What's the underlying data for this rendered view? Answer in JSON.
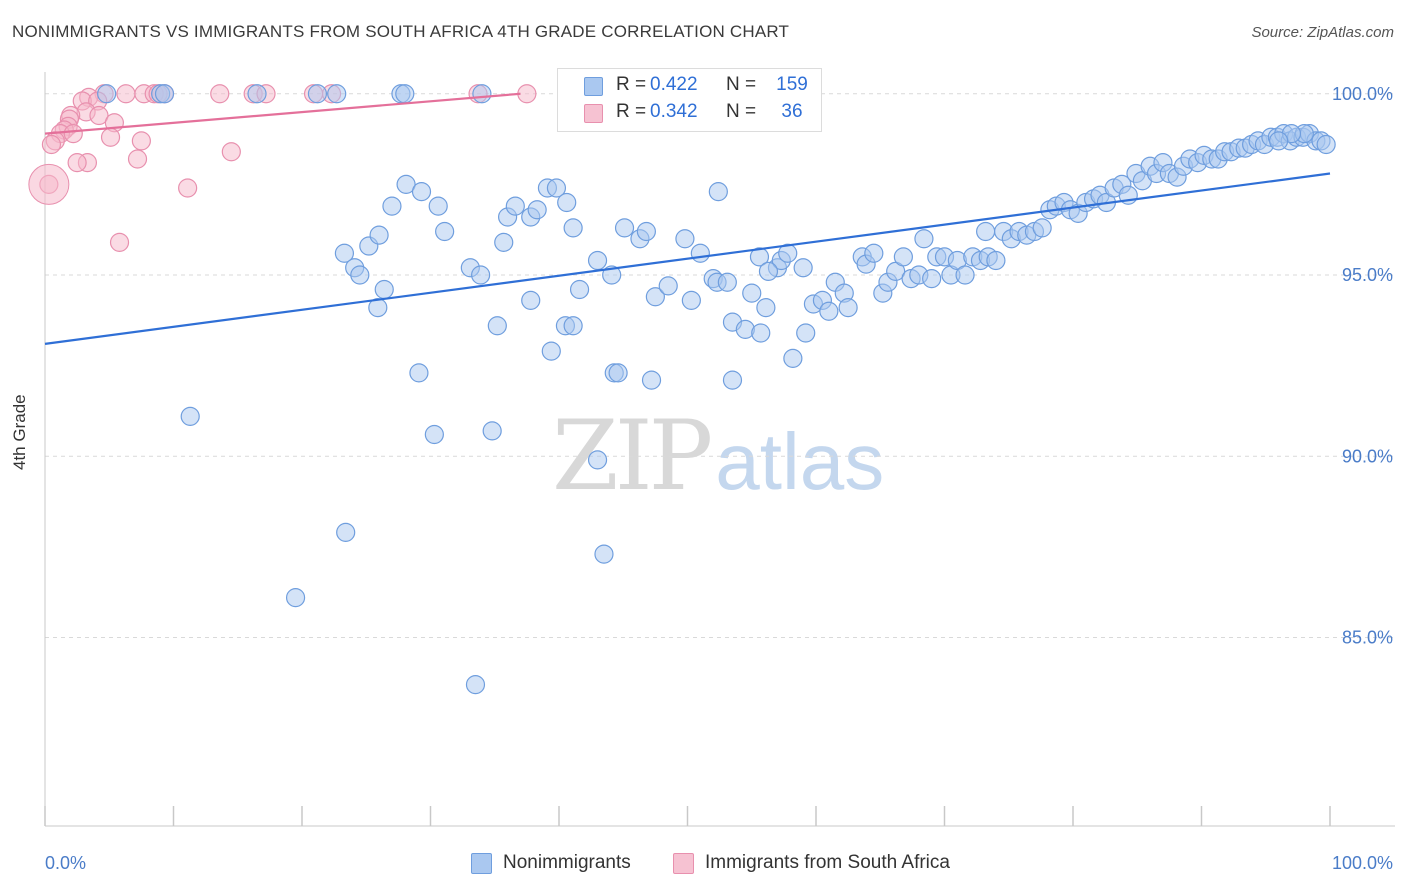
{
  "header": {
    "title": "NONIMMIGRANTS VS IMMIGRANTS FROM SOUTH AFRICA 4TH GRADE CORRELATION CHART",
    "source": "Source: ZipAtlas.com"
  },
  "stats": {
    "blue": {
      "r_label": "R =",
      "r_value": "0.422",
      "n_label": "N =",
      "n_value": "159"
    },
    "pink": {
      "r_label": "R =",
      "r_value": "0.342",
      "n_label": "N =",
      "n_value": "36"
    }
  },
  "legend": {
    "blue_label": "Nonimmigrants",
    "pink_label": "Immigrants from South Africa"
  },
  "watermark": {
    "zip": "ZIP",
    "atlas": "atlas"
  },
  "colors": {
    "blue": "#2f6fd6",
    "blue_fill": "#aac8f0",
    "pink": "#e4709a",
    "pink_fill": "#f6b8ca",
    "axis_text": "#4a7cc8",
    "grid": "#d9d9d9"
  },
  "chart_data": {
    "type": "scatter",
    "title": "NONIMMIGRANTS VS IMMIGRANTS FROM SOUTH AFRICA 4TH GRADE CORRELATION CHART",
    "xlabel": "",
    "ylabel": "4th Grade",
    "xlim": [
      0,
      100
    ],
    "ylim": [
      79.8,
      100.6
    ],
    "x_tick_labels": [
      "0.0%",
      "100.0%"
    ],
    "y_ticks": [
      85,
      90,
      95,
      100
    ],
    "y_tick_labels": [
      "85.0%",
      "90.0%",
      "95.0%",
      "100.0%"
    ],
    "grid": true,
    "series": [
      {
        "name": "Nonimmigrants",
        "color": "#2f6fd6",
        "trend": {
          "x": [
            0,
            100
          ],
          "y": [
            93.1,
            97.8
          ]
        },
        "points": [
          [
            4.8,
            100.0
          ],
          [
            9.0,
            100.0
          ],
          [
            9.3,
            100.0
          ],
          [
            16.5,
            100.0
          ],
          [
            21.2,
            100.0
          ],
          [
            22.7,
            100.0
          ],
          [
            27.7,
            100.0
          ],
          [
            28.0,
            100.0
          ],
          [
            34.0,
            100.0
          ],
          [
            11.3,
            91.1
          ],
          [
            23.4,
            87.9
          ],
          [
            19.5,
            86.1
          ],
          [
            33.5,
            83.7
          ],
          [
            43.5,
            87.3
          ],
          [
            43.0,
            89.9
          ],
          [
            30.3,
            90.6
          ],
          [
            34.8,
            90.7
          ],
          [
            29.1,
            92.3
          ],
          [
            44.3,
            92.3
          ],
          [
            44.6,
            92.3
          ],
          [
            47.2,
            92.1
          ],
          [
            53.5,
            92.1
          ],
          [
            58.2,
            92.7
          ],
          [
            39.4,
            92.9
          ],
          [
            59.2,
            93.4
          ],
          [
            25.9,
            94.1
          ],
          [
            26.4,
            94.6
          ],
          [
            35.2,
            93.6
          ],
          [
            37.8,
            94.3
          ],
          [
            40.5,
            93.6
          ],
          [
            41.1,
            93.6
          ],
          [
            41.6,
            94.6
          ],
          [
            47.5,
            94.4
          ],
          [
            48.5,
            94.7
          ],
          [
            50.3,
            94.3
          ],
          [
            52.0,
            94.9
          ],
          [
            52.3,
            94.8
          ],
          [
            53.1,
            94.8
          ],
          [
            53.5,
            93.7
          ],
          [
            54.5,
            93.5
          ],
          [
            55.0,
            94.5
          ],
          [
            55.7,
            93.4
          ],
          [
            56.1,
            94.1
          ],
          [
            57.0,
            95.2
          ],
          [
            57.3,
            95.4
          ],
          [
            57.8,
            95.6
          ],
          [
            59.0,
            95.2
          ],
          [
            59.8,
            94.2
          ],
          [
            60.5,
            94.3
          ],
          [
            61.0,
            94.0
          ],
          [
            61.5,
            94.8
          ],
          [
            62.2,
            94.5
          ],
          [
            62.5,
            94.1
          ],
          [
            63.6,
            95.5
          ],
          [
            63.9,
            95.3
          ],
          [
            64.5,
            95.6
          ],
          [
            65.2,
            94.5
          ],
          [
            65.6,
            94.8
          ],
          [
            66.2,
            95.1
          ],
          [
            66.8,
            95.5
          ],
          [
            67.4,
            94.9
          ],
          [
            68.0,
            95.0
          ],
          [
            68.4,
            96.0
          ],
          [
            69.0,
            94.9
          ],
          [
            69.4,
            95.5
          ],
          [
            70.0,
            95.5
          ],
          [
            70.5,
            95.0
          ],
          [
            71.0,
            95.4
          ],
          [
            71.6,
            95.0
          ],
          [
            72.2,
            95.5
          ],
          [
            72.8,
            95.4
          ],
          [
            73.4,
            95.5
          ],
          [
            74.0,
            95.4
          ],
          [
            73.2,
            96.2
          ],
          [
            74.6,
            96.2
          ],
          [
            75.2,
            96.0
          ],
          [
            75.8,
            96.2
          ],
          [
            76.4,
            96.1
          ],
          [
            77.0,
            96.2
          ],
          [
            77.6,
            96.3
          ],
          [
            78.2,
            96.8
          ],
          [
            78.7,
            96.9
          ],
          [
            79.3,
            97.0
          ],
          [
            79.8,
            96.8
          ],
          [
            80.4,
            96.7
          ],
          [
            81.0,
            97.0
          ],
          [
            81.6,
            97.1
          ],
          [
            82.1,
            97.2
          ],
          [
            82.6,
            97.0
          ],
          [
            83.2,
            97.4
          ],
          [
            83.8,
            97.5
          ],
          [
            84.3,
            97.2
          ],
          [
            84.9,
            97.8
          ],
          [
            85.4,
            97.6
          ],
          [
            86.0,
            98.0
          ],
          [
            86.5,
            97.8
          ],
          [
            87.0,
            98.1
          ],
          [
            87.5,
            97.8
          ],
          [
            88.1,
            97.7
          ],
          [
            88.6,
            98.0
          ],
          [
            89.1,
            98.2
          ],
          [
            89.7,
            98.1
          ],
          [
            90.2,
            98.3
          ],
          [
            90.8,
            98.2
          ],
          [
            91.3,
            98.2
          ],
          [
            91.8,
            98.4
          ],
          [
            92.3,
            98.4
          ],
          [
            92.9,
            98.5
          ],
          [
            93.4,
            98.5
          ],
          [
            93.9,
            98.6
          ],
          [
            94.4,
            98.7
          ],
          [
            94.9,
            98.6
          ],
          [
            95.4,
            98.8
          ],
          [
            95.9,
            98.8
          ],
          [
            96.4,
            98.9
          ],
          [
            96.9,
            98.7
          ],
          [
            97.4,
            98.8
          ],
          [
            97.9,
            98.8
          ],
          [
            98.4,
            98.9
          ],
          [
            98.9,
            98.7
          ],
          [
            99.3,
            98.7
          ],
          [
            99.7,
            98.6
          ],
          [
            98.0,
            98.9
          ],
          [
            97.0,
            98.9
          ],
          [
            96.0,
            98.7
          ],
          [
            23.3,
            95.6
          ],
          [
            24.1,
            95.2
          ],
          [
            24.5,
            95.0
          ],
          [
            25.2,
            95.8
          ],
          [
            26.0,
            96.1
          ],
          [
            27.0,
            96.9
          ],
          [
            28.1,
            97.5
          ],
          [
            29.3,
            97.3
          ],
          [
            30.6,
            96.9
          ],
          [
            31.1,
            96.2
          ],
          [
            33.1,
            95.2
          ],
          [
            33.9,
            95.0
          ],
          [
            35.7,
            95.9
          ],
          [
            36.0,
            96.6
          ],
          [
            36.6,
            96.9
          ],
          [
            37.8,
            96.6
          ],
          [
            38.3,
            96.8
          ],
          [
            39.1,
            97.4
          ],
          [
            39.8,
            97.4
          ],
          [
            40.6,
            97.0
          ],
          [
            41.1,
            96.3
          ],
          [
            43.0,
            95.4
          ],
          [
            44.1,
            95.0
          ],
          [
            45.1,
            96.3
          ],
          [
            46.3,
            96.0
          ],
          [
            46.8,
            96.2
          ],
          [
            49.8,
            96.0
          ],
          [
            51.0,
            95.6
          ],
          [
            52.4,
            97.3
          ],
          [
            55.6,
            95.5
          ],
          [
            56.3,
            95.1
          ]
        ]
      },
      {
        "name": "Immigrants from South Africa",
        "color": "#e4709a",
        "trend": {
          "x": [
            0,
            37
          ],
          "y": [
            98.9,
            100.0
          ]
        },
        "points": [
          [
            4.6,
            100.0
          ],
          [
            6.3,
            100.0
          ],
          [
            7.7,
            100.0
          ],
          [
            8.5,
            100.0
          ],
          [
            8.8,
            100.0
          ],
          [
            9.3,
            100.0
          ],
          [
            13.6,
            100.0
          ],
          [
            16.2,
            100.0
          ],
          [
            17.2,
            100.0
          ],
          [
            20.9,
            100.0
          ],
          [
            22.3,
            100.0
          ],
          [
            33.7,
            100.0
          ],
          [
            37.5,
            100.0
          ],
          [
            3.4,
            99.9
          ],
          [
            2.9,
            99.8
          ],
          [
            4.1,
            99.8
          ],
          [
            3.2,
            99.5
          ],
          [
            4.2,
            99.4
          ],
          [
            2.0,
            99.4
          ],
          [
            1.9,
            99.3
          ],
          [
            5.4,
            99.2
          ],
          [
            1.8,
            99.1
          ],
          [
            1.5,
            99.0
          ],
          [
            1.2,
            98.9
          ],
          [
            2.2,
            98.9
          ],
          [
            5.1,
            98.8
          ],
          [
            7.5,
            98.7
          ],
          [
            0.8,
            98.7
          ],
          [
            0.5,
            98.6
          ],
          [
            14.5,
            98.4
          ],
          [
            7.2,
            98.2
          ],
          [
            3.3,
            98.1
          ],
          [
            2.5,
            98.1
          ],
          [
            11.1,
            97.4
          ],
          [
            0.3,
            97.5
          ],
          [
            5.8,
            95.9
          ]
        ]
      }
    ]
  }
}
